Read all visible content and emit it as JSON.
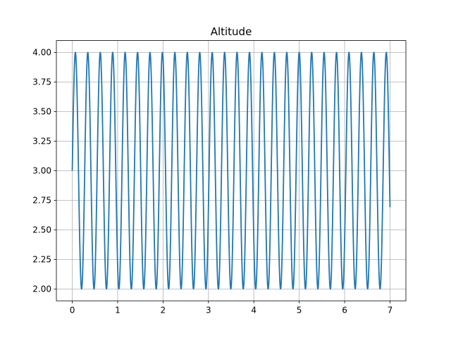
{
  "chart_data": {
    "type": "line",
    "title": "Altitude",
    "xlabel": "",
    "ylabel": "",
    "xlim": [
      -0.35,
      7.35
    ],
    "ylim": [
      1.9,
      4.1
    ],
    "x_ticks": [
      0,
      1,
      2,
      3,
      4,
      5,
      6,
      7
    ],
    "x_tick_labels": [
      "0",
      "1",
      "2",
      "3",
      "4",
      "5",
      "6",
      "7"
    ],
    "y_ticks": [
      2.0,
      2.25,
      2.5,
      2.75,
      3.0,
      3.25,
      3.5,
      3.75,
      4.0
    ],
    "y_tick_labels": [
      "2.00",
      "2.25",
      "2.50",
      "2.75",
      "3.00",
      "3.25",
      "3.50",
      "3.75",
      "4.00"
    ],
    "grid": true,
    "legend": "none",
    "series": [
      {
        "color": "#1f77b4",
        "function": "3 + sin(2*pi*f*x)",
        "offset": 3.0,
        "amplitude": 1.0,
        "frequency": 3.65,
        "x_start": 0,
        "x_end": 7
      }
    ]
  }
}
